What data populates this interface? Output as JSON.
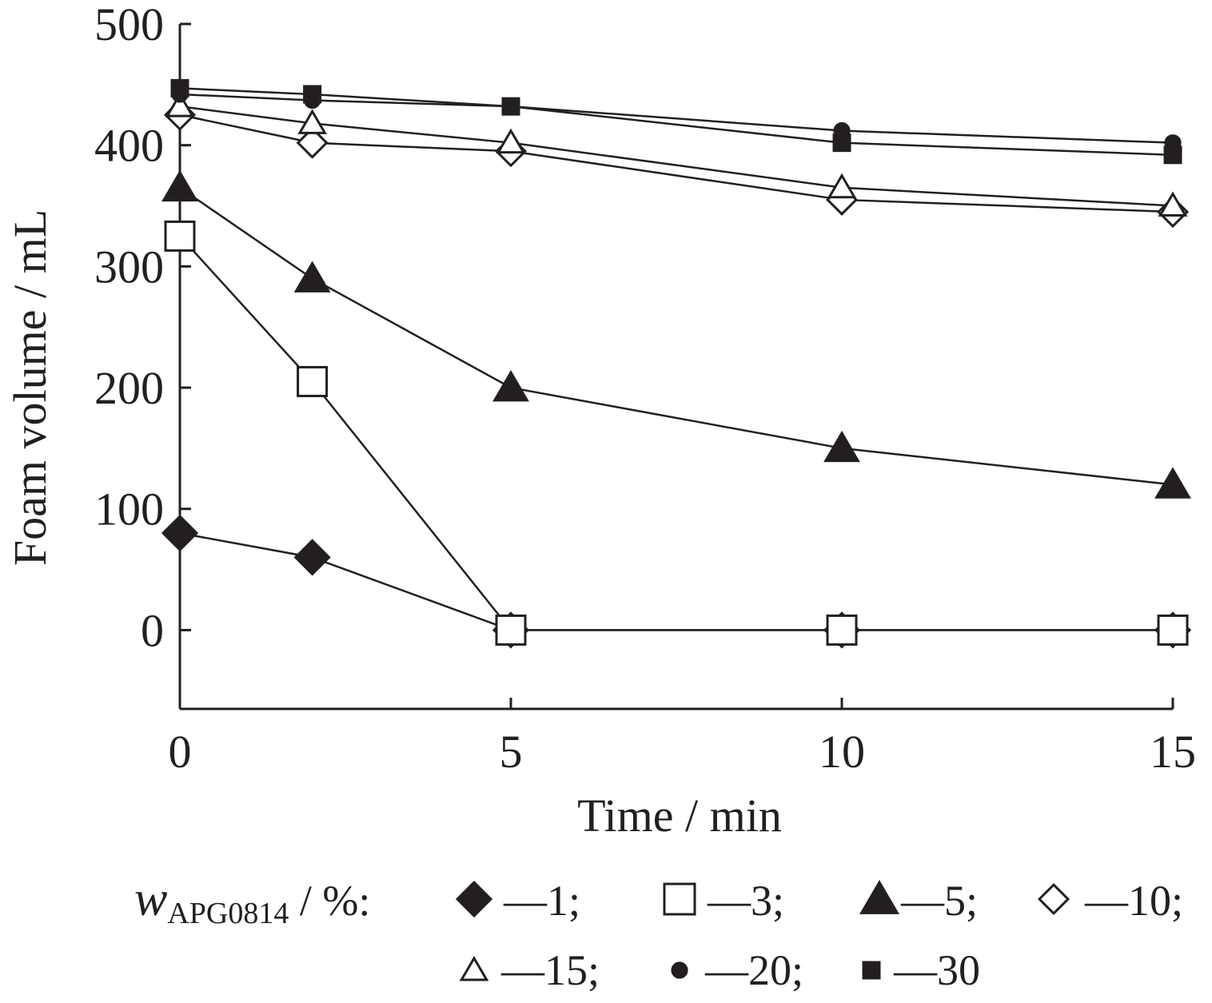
{
  "chart_data": {
    "type": "line",
    "xlabel": "Time / min",
    "ylabel": "Foam volume / mL",
    "xlim": [
      0,
      15
    ],
    "ylim": [
      -65,
      500
    ],
    "xticks": [
      0,
      5,
      10,
      15
    ],
    "yticks": [
      0,
      100,
      200,
      300,
      400,
      500
    ],
    "grid": false,
    "legend_position": "bottom",
    "legend_title": {
      "var": "w",
      "sub": "APG0814",
      "unit": " / %:"
    },
    "series": [
      {
        "name": "1",
        "marker": "diamond-filled",
        "x": [
          0,
          2,
          5,
          10,
          15
        ],
        "y": [
          80,
          60,
          0,
          0,
          0
        ]
      },
      {
        "name": "3",
        "marker": "square-open",
        "x": [
          0,
          2,
          5,
          10,
          15
        ],
        "y": [
          325,
          205,
          0,
          0,
          0
        ]
      },
      {
        "name": "5",
        "marker": "triangle-filled",
        "x": [
          0,
          2,
          5,
          10,
          15
        ],
        "y": [
          365,
          290,
          200,
          150,
          120
        ]
      },
      {
        "name": "10",
        "marker": "diamond-open",
        "x": [
          0,
          2,
          5,
          10,
          15
        ],
        "y": [
          425,
          402,
          395,
          355,
          345
        ]
      },
      {
        "name": "15",
        "marker": "triangle-open",
        "x": [
          0,
          2,
          5,
          10,
          15
        ],
        "y": [
          432,
          418,
          402,
          365,
          350
        ]
      },
      {
        "name": "20",
        "marker": "circle-filled",
        "x": [
          0,
          2,
          5,
          10,
          15
        ],
        "y": [
          442,
          437,
          432,
          412,
          402
        ]
      },
      {
        "name": "30",
        "marker": "square-filled",
        "x": [
          0,
          2,
          5,
          10,
          15
        ],
        "y": [
          447,
          442,
          432,
          402,
          392
        ]
      }
    ],
    "legend_entries": [
      "—1;",
      "—3;",
      "—5;",
      "—10;",
      "—15;",
      "—20;",
      "—30"
    ]
  }
}
